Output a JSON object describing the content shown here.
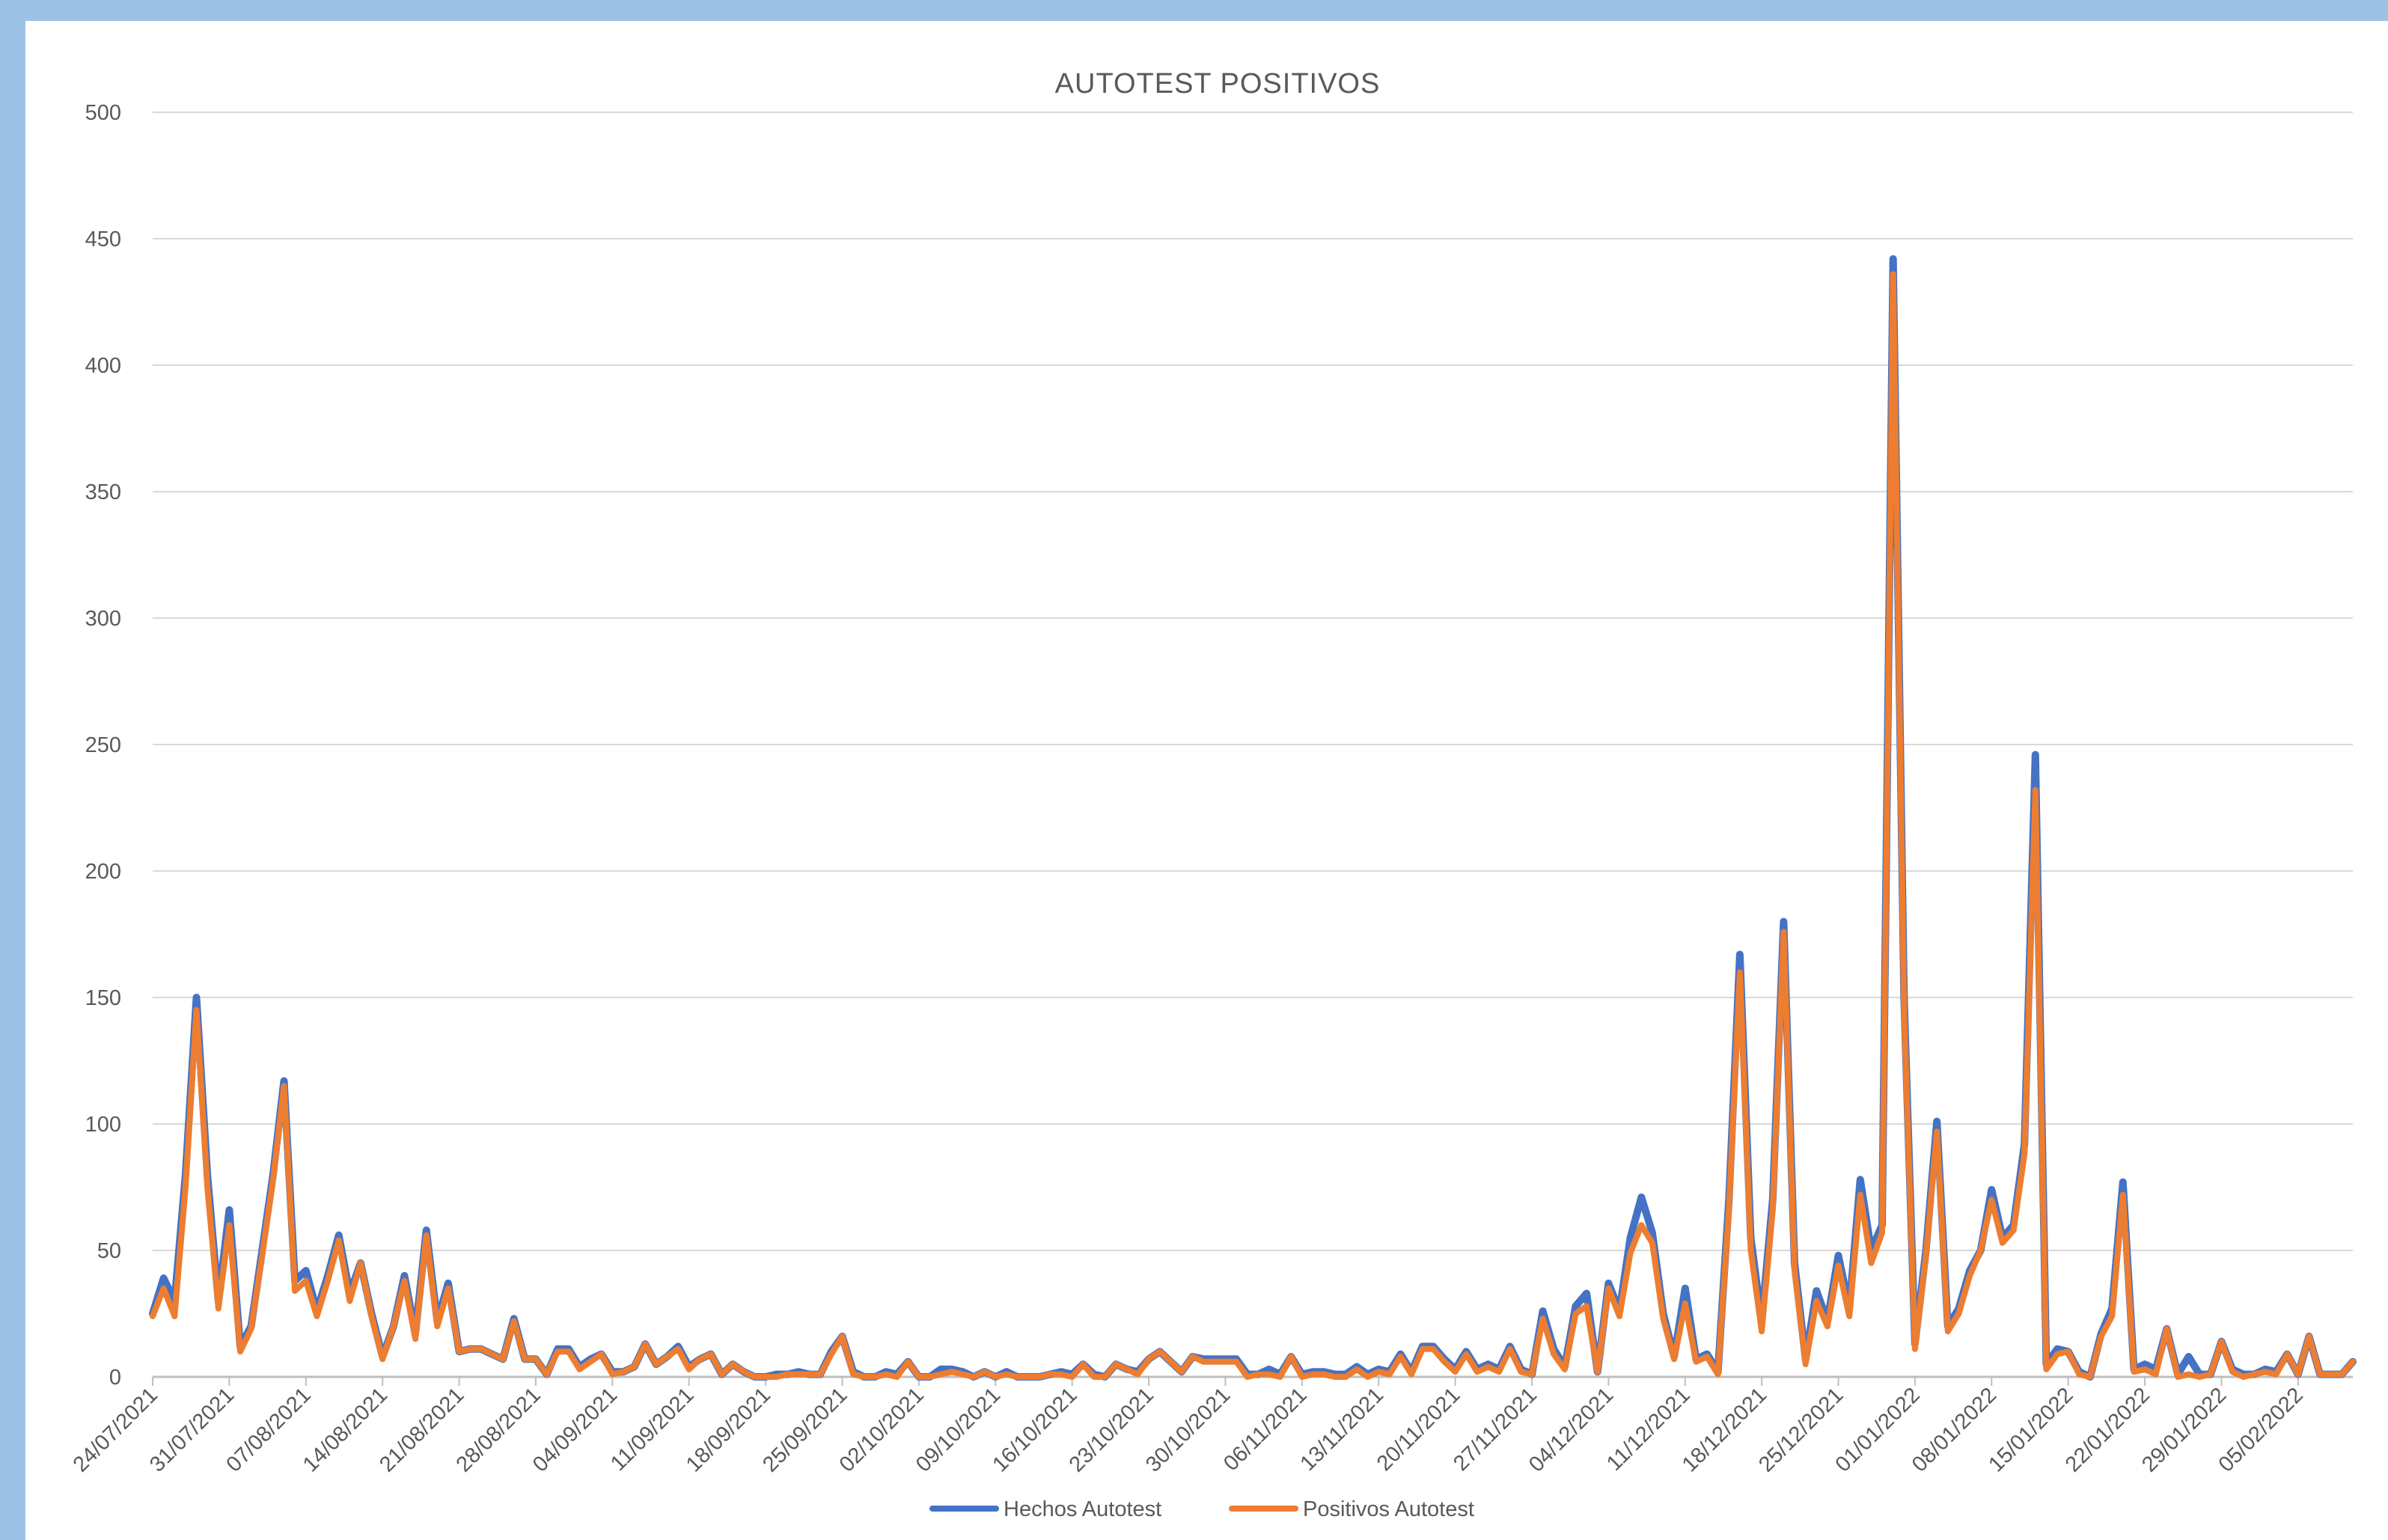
{
  "chart_data": {
    "type": "line",
    "title": "AUTOTEST POSITIVOS",
    "xlabel": "",
    "ylabel": "",
    "ylim": [
      0,
      500
    ],
    "yticks": [
      0,
      50,
      100,
      150,
      200,
      250,
      300,
      350,
      400,
      450,
      500
    ],
    "grid": true,
    "legend": "bottom",
    "x_tick_labels": [
      "24/07/2021",
      "31/07/2021",
      "07/08/2021",
      "14/08/2021",
      "21/08/2021",
      "28/08/2021",
      "04/09/2021",
      "11/09/2021",
      "18/09/2021",
      "25/09/2021",
      "02/10/2021",
      "09/10/2021",
      "16/10/2021",
      "23/10/2021",
      "30/10/2021",
      "06/11/2021",
      "13/11/2021",
      "20/11/2021",
      "27/11/2021",
      "04/12/2021",
      "11/12/2021",
      "18/12/2021",
      "25/12/2021",
      "01/01/2022",
      "08/01/2022",
      "15/01/2022",
      "22/01/2022",
      "29/01/2022",
      "05/02/2022"
    ],
    "x_start": "24/07/2021",
    "x_step_days": 1,
    "series": [
      {
        "name": "Hechos Autotest",
        "color": "#4472c4",
        "values": [
          25,
          39,
          30,
          80,
          150,
          80,
          30,
          66,
          12,
          20,
          50,
          80,
          117,
          38,
          42,
          26,
          40,
          56,
          33,
          45,
          25,
          8,
          20,
          40,
          17,
          58,
          22,
          37,
          10,
          11,
          11,
          9,
          7,
          23,
          7,
          7,
          1,
          11,
          11,
          4,
          7,
          9,
          2,
          2,
          4,
          13,
          5,
          8,
          12,
          4,
          7,
          9,
          1,
          5,
          2,
          0,
          0,
          1,
          1,
          2,
          1,
          1,
          10,
          16,
          2,
          0,
          0,
          2,
          1,
          6,
          0,
          0,
          3,
          3,
          2,
          0,
          2,
          0,
          2,
          0,
          0,
          0,
          1,
          2,
          1,
          5,
          1,
          0,
          5,
          3,
          2,
          7,
          10,
          6,
          2,
          8,
          7,
          7,
          7,
          7,
          1,
          1,
          3,
          1,
          8,
          1,
          2,
          2,
          1,
          1,
          4,
          1,
          3,
          2,
          9,
          2,
          12,
          12,
          7,
          3,
          10,
          3,
          5,
          3,
          12,
          3,
          1,
          26,
          11,
          4,
          28,
          33,
          2,
          37,
          26,
          55,
          71,
          57,
          25,
          8,
          35,
          7,
          9,
          2,
          70,
          167,
          55,
          22,
          70,
          180,
          45,
          7,
          34,
          22,
          48,
          27,
          78,
          50,
          60,
          442,
          150,
          13,
          50,
          101,
          20,
          27,
          42,
          50,
          74,
          55,
          60,
          92,
          246,
          5,
          11,
          10,
          2,
          0,
          17,
          27,
          77,
          3,
          5,
          3,
          19,
          1,
          8,
          1,
          1,
          14,
          3,
          1,
          1,
          3,
          2,
          9,
          1,
          16,
          1,
          1,
          1,
          6
        ],
        "stroke": 10
      },
      {
        "name": "Positivos Autotest",
        "color": "#ed7d31",
        "values": [
          24,
          35,
          24,
          75,
          145,
          75,
          27,
          60,
          10,
          19,
          48,
          78,
          115,
          34,
          38,
          24,
          38,
          54,
          30,
          45,
          24,
          7,
          20,
          38,
          15,
          56,
          20,
          35,
          10,
          11,
          11,
          9,
          7,
          22,
          7,
          7,
          1,
          10,
          10,
          3,
          6,
          9,
          1,
          2,
          4,
          13,
          5,
          8,
          11,
          3,
          7,
          9,
          1,
          5,
          2,
          0,
          0,
          0,
          1,
          1,
          1,
          1,
          9,
          16,
          1,
          0,
          0,
          1,
          0,
          6,
          0,
          0,
          1,
          2,
          1,
          0,
          2,
          0,
          1,
          0,
          0,
          0,
          1,
          1,
          0,
          5,
          0,
          0,
          5,
          3,
          1,
          7,
          10,
          6,
          2,
          8,
          6,
          6,
          6,
          6,
          0,
          1,
          1,
          0,
          8,
          0,
          1,
          1,
          0,
          0,
          3,
          0,
          2,
          1,
          8,
          1,
          11,
          11,
          6,
          2,
          9,
          2,
          4,
          2,
          11,
          2,
          1,
          23,
          9,
          3,
          25,
          28,
          2,
          35,
          24,
          49,
          60,
          53,
          23,
          7,
          29,
          6,
          8,
          1,
          66,
          160,
          50,
          18,
          66,
          176,
          42,
          5,
          30,
          20,
          44,
          24,
          72,
          45,
          57,
          436,
          145,
          11,
          48,
          97,
          18,
          25,
          40,
          50,
          70,
          53,
          58,
          88,
          232,
          3,
          9,
          10,
          1,
          0,
          16,
          24,
          72,
          2,
          3,
          1,
          19,
          0,
          1,
          0,
          1,
          14,
          2,
          0,
          1,
          2,
          1,
          9,
          1,
          16,
          1,
          1,
          1,
          6
        ],
        "stroke": 8
      }
    ]
  }
}
